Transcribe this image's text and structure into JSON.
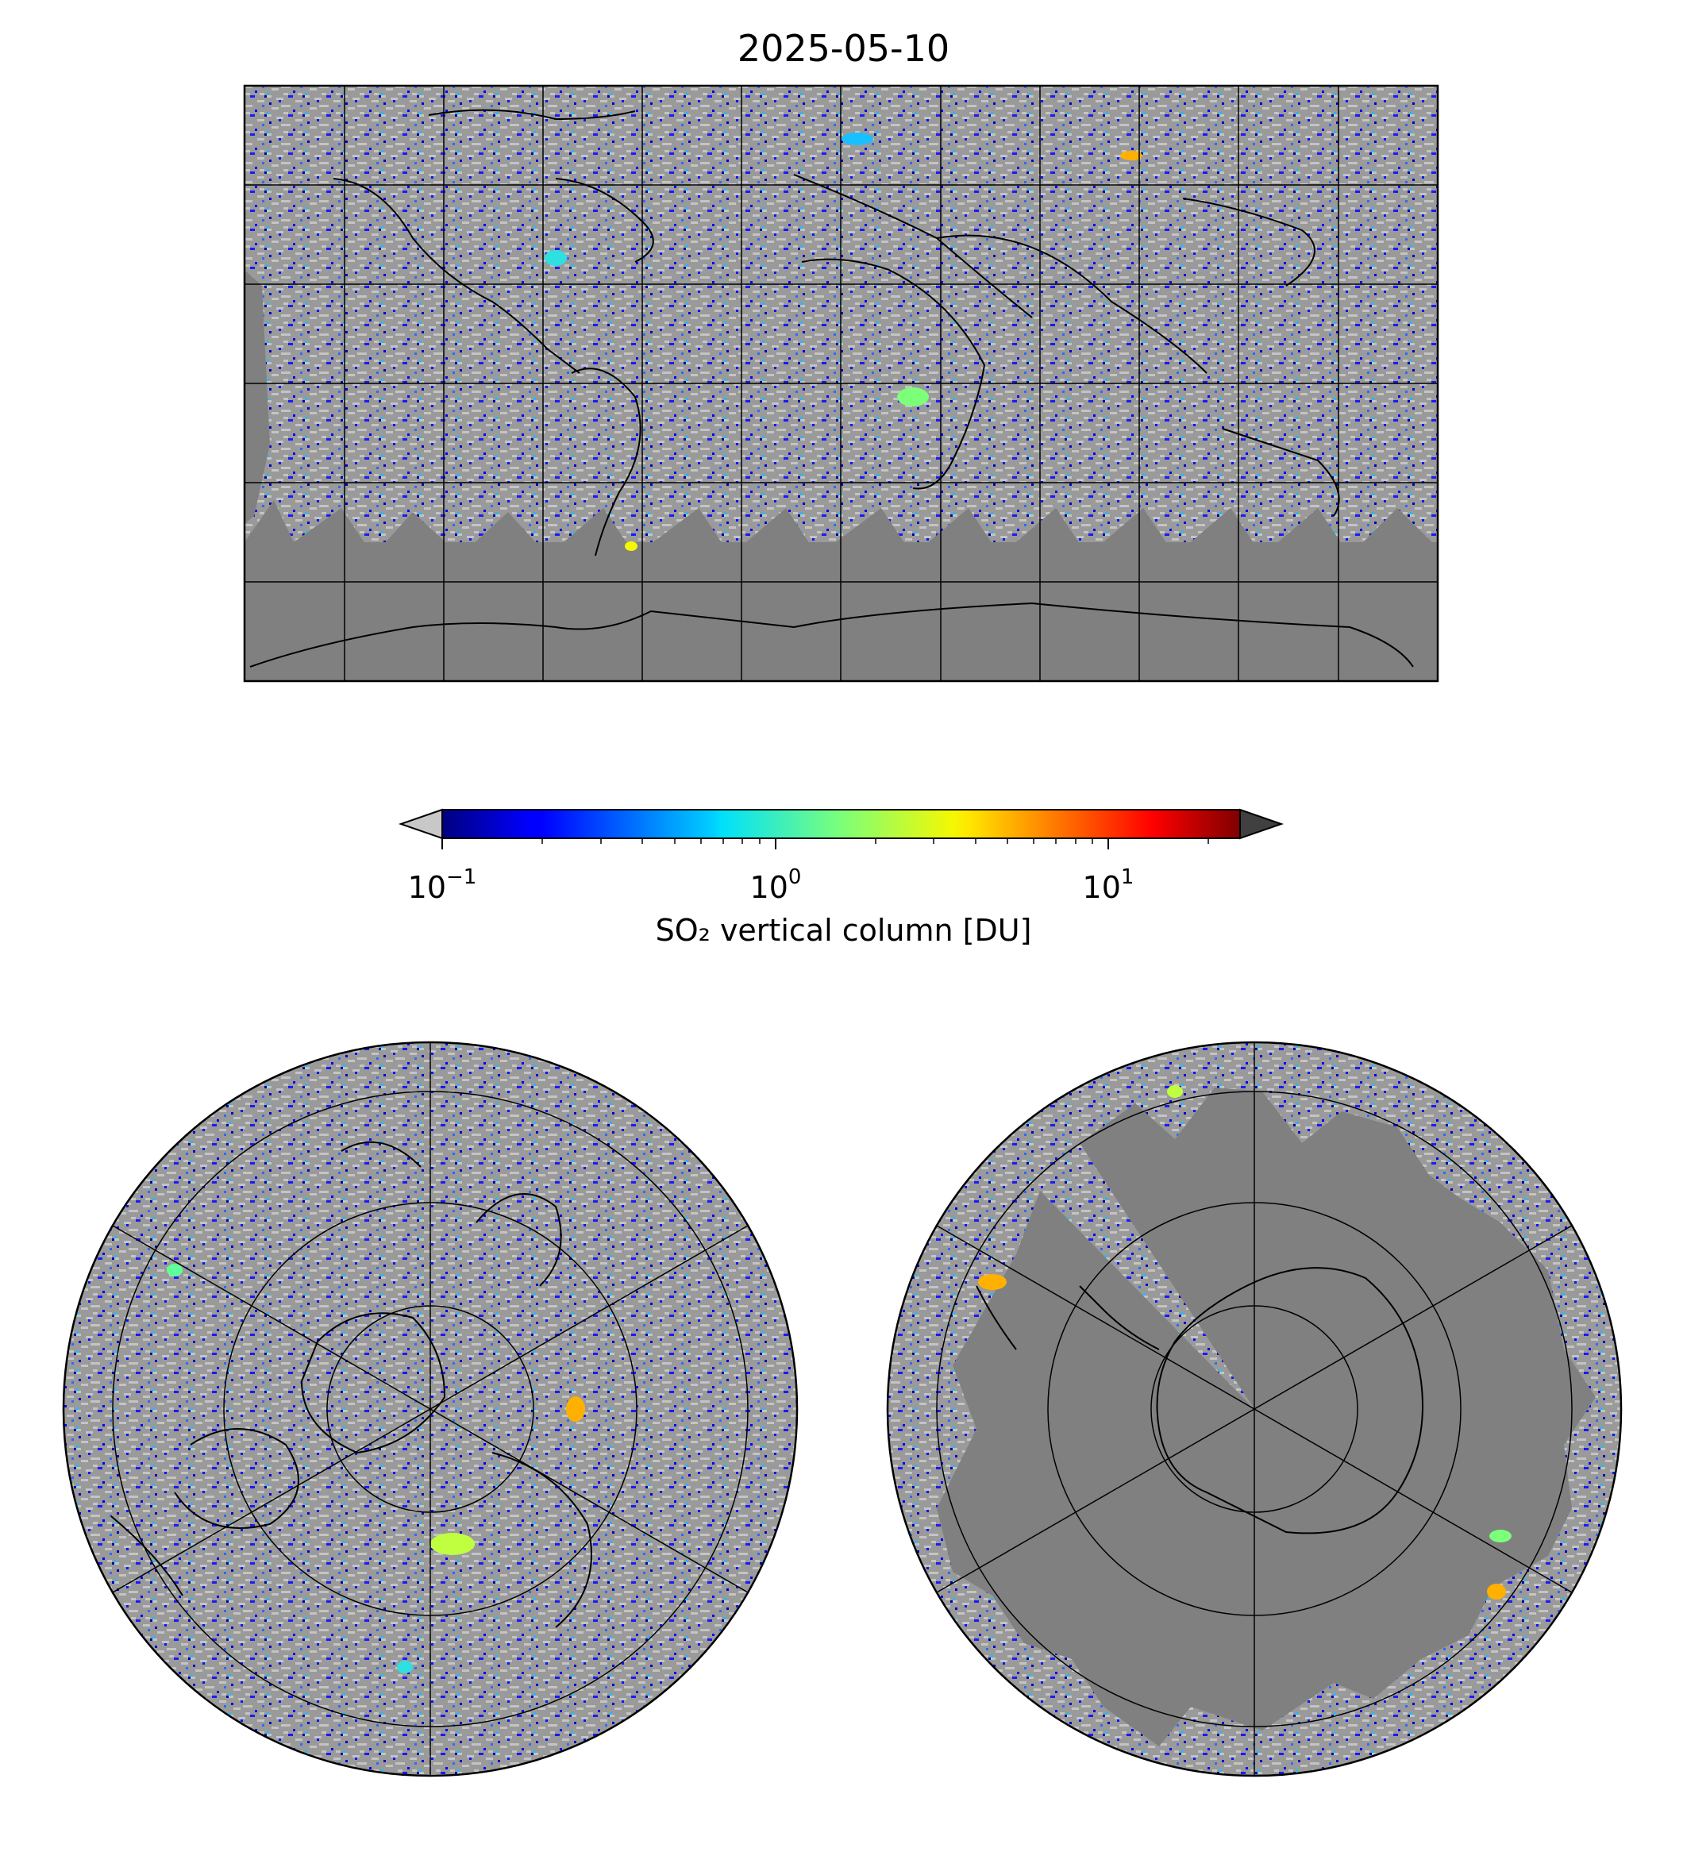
{
  "title": "2025-05-10",
  "colorbar": {
    "label": "SO₂ vertical column [DU]",
    "scale": "log",
    "range": [
      0.1,
      25
    ],
    "colormap": "jet",
    "under_color": "#c8c8c8",
    "over_color": "#404040",
    "ticks": [
      {
        "base": "10",
        "exp": "−1",
        "value": 0.1
      },
      {
        "base": "10",
        "exp": "0",
        "value": 1
      },
      {
        "base": "10",
        "exp": "1",
        "value": 10
      }
    ]
  },
  "maps": [
    {
      "projection": "plate-carree",
      "extent": "global",
      "background": "#808080"
    },
    {
      "projection": "north-polar-stereographic",
      "background": "#808080"
    },
    {
      "projection": "south-polar-stereographic",
      "background": "#808080"
    }
  ],
  "colors": {
    "nodata": "#808080",
    "below_range": "#c0c0c0",
    "coast": "#000000"
  }
}
